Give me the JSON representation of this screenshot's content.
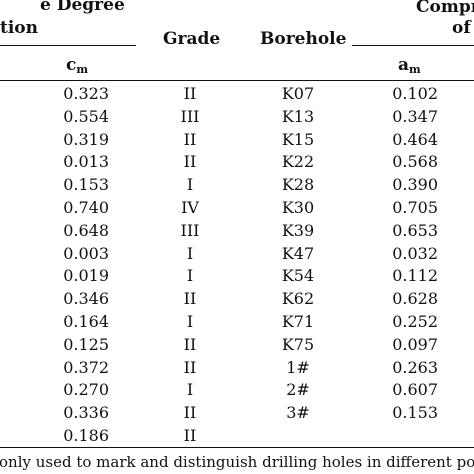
{
  "header": {
    "group1_line1": "e Degree",
    "group1_line2": "tion",
    "grade": "Grade",
    "borehole": "Borehole",
    "group2_line1": "Compr",
    "group2_line2": "of",
    "cm_base": "c",
    "cm_sub": "m",
    "am_base": "a",
    "am_sub": "m"
  },
  "rows": [
    {
      "cm": "0.323",
      "grade": "II",
      "borehole": "K07",
      "am": "0.102"
    },
    {
      "cm": "0.554",
      "grade": "III",
      "borehole": "K13",
      "am": "0.347"
    },
    {
      "cm": "0.319",
      "grade": "II",
      "borehole": "K15",
      "am": "0.464"
    },
    {
      "cm": "0.013",
      "grade": "II",
      "borehole": "K22",
      "am": "0.568"
    },
    {
      "cm": "0.153",
      "grade": "I",
      "borehole": "K28",
      "am": "0.390"
    },
    {
      "cm": "0.740",
      "grade": "IV",
      "borehole": "K30",
      "am": "0.705"
    },
    {
      "cm": "0.648",
      "grade": "III",
      "borehole": "K39",
      "am": "0.653"
    },
    {
      "cm": "0.003",
      "grade": "I",
      "borehole": "K47",
      "am": "0.032"
    },
    {
      "cm": "0.019",
      "grade": "I",
      "borehole": "K54",
      "am": "0.112"
    },
    {
      "cm": "0.346",
      "grade": "II",
      "borehole": "K62",
      "am": "0.628"
    },
    {
      "cm": "0.164",
      "grade": "I",
      "borehole": "K71",
      "am": "0.252"
    },
    {
      "cm": "0.125",
      "grade": "II",
      "borehole": "K75",
      "am": "0.097"
    },
    {
      "cm": "0.372",
      "grade": "II",
      "borehole": "1#",
      "am": "0.263"
    },
    {
      "cm": "0.270",
      "grade": "I",
      "borehole": "2#",
      "am": "0.607"
    },
    {
      "cm": "0.336",
      "grade": "II",
      "borehole": "3#",
      "am": "0.153"
    },
    {
      "cm": "0.186",
      "grade": "II",
      "borehole": "",
      "am": ""
    }
  ],
  "footnote": "only used to mark and distinguish drilling holes in different post"
}
